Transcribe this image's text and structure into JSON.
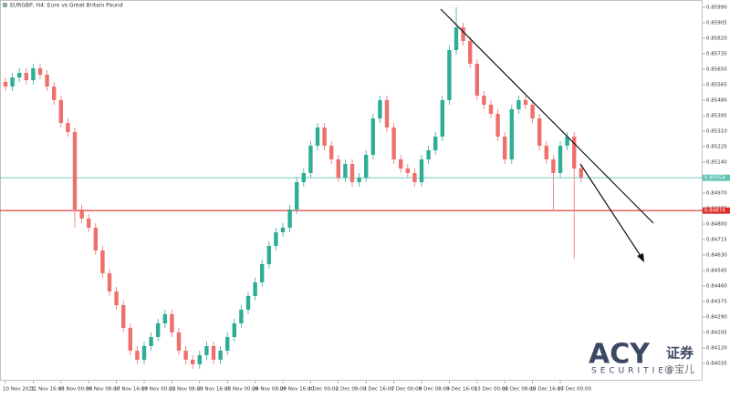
{
  "chart_data": {
    "type": "candlestick",
    "title": "EURGBP, H4:  Euro vs Great Britain Pound",
    "up_color": "#2fae96",
    "down_color": "#ef6f6c",
    "ylim": [
      0.8394,
      0.8603
    ],
    "yticks": [
      {
        "value": 0.8599,
        "label": "0.85990"
      },
      0.85905,
      {
        "value": 0.8582,
        "label": "0.85820"
      },
      0.85735,
      {
        "value": 0.8565,
        "label": "0.85650"
      },
      0.85565,
      {
        "value": 0.8548,
        "label": "0.85480"
      },
      0.85395,
      {
        "value": 0.8531,
        "label": "0.85310"
      },
      0.85225,
      {
        "value": 0.8514,
        "label": "0.85140"
      },
      0.85055,
      {
        "value": 0.8497,
        "label": "0.84970"
      },
      0.84885,
      {
        "value": 0.848,
        "label": "0.84800"
      },
      0.84715,
      {
        "value": 0.8463,
        "label": "0.84630"
      },
      0.84545,
      {
        "value": 0.8446,
        "label": "0.84460"
      },
      0.84375,
      {
        "value": 0.8429,
        "label": "0.84290"
      },
      0.84205,
      {
        "value": 0.8412,
        "label": "0.84120"
      },
      0.84035
    ],
    "hlines": [
      {
        "value": 0.85054,
        "color": "#5fc4b4"
      },
      {
        "value": 0.84874,
        "color": "#d9302c"
      }
    ],
    "categories": [
      "10 Nov 2021",
      null,
      null,
      null,
      "11 Nov 16:00",
      null,
      null,
      null,
      "15 Nov 00:00",
      null,
      null,
      null,
      "16 Nov 08:00",
      null,
      null,
      null,
      "17 Nov 16:00",
      null,
      null,
      null,
      "19 Nov 00:00",
      null,
      null,
      null,
      "22 Nov 08:00",
      null,
      null,
      null,
      "23 Nov 16:00",
      null,
      null,
      null,
      "25 Nov 00:00",
      null,
      null,
      null,
      "26 Nov 08:00",
      null,
      null,
      null,
      "29 Nov 16:00",
      null,
      null,
      null,
      "1 Dec 00:00",
      null,
      null,
      null,
      "2 Dec 08:00",
      null,
      null,
      null,
      "3 Dec 16:00",
      null,
      null,
      null,
      "7 Dec 00:00",
      null,
      null,
      null,
      "8 Dec 08:00",
      null,
      null,
      null,
      "9 Dec 16:00",
      null,
      null,
      null,
      "13 Dec 00:00",
      null,
      null,
      null,
      "14 Dec 08:00",
      null,
      null,
      null,
      "15 Dec 16:00",
      null,
      null,
      null,
      "17 Dec 00:00",
      null,
      null,
      null
    ],
    "open": [
      0.8558,
      0.85555,
      0.85605,
      0.8563,
      0.8559,
      0.85655,
      0.8562,
      0.85555,
      0.8548,
      0.85355,
      0.85305,
      0.8488,
      0.8483,
      0.8478,
      0.84655,
      0.8453,
      0.8443,
      0.84355,
      0.8423,
      0.84105,
      0.84055,
      0.8413,
      0.8418,
      0.84255,
      0.84305,
      0.84205,
      0.84105,
      0.84055,
      0.8403,
      0.8408,
      0.8413,
      0.84055,
      0.84105,
      0.8418,
      0.84255,
      0.8433,
      0.84405,
      0.8448,
      0.8458,
      0.8468,
      0.84755,
      0.8478,
      0.8488,
      0.8503,
      0.8508,
      0.8523,
      0.8533,
      0.8523,
      0.85155,
      0.85055,
      0.8513,
      0.8503,
      0.85055,
      0.8518,
      0.8538,
      0.8548,
      0.8533,
      0.85155,
      0.85105,
      0.8508,
      0.8503,
      0.85155,
      0.85205,
      0.8528,
      0.8548,
      0.85755,
      0.8588,
      0.85805,
      0.8568,
      0.85505,
      0.85455,
      0.85405,
      0.8528,
      0.85155,
      0.8543,
      0.8548,
      0.85455,
      0.8538,
      0.8523,
      0.85155,
      0.8508,
      0.8523,
      0.8528,
      0.85105
    ],
    "high": [
      0.85605,
      0.8563,
      0.85655,
      0.85655,
      0.8568,
      0.8568,
      0.85645,
      0.8558,
      0.85505,
      0.8538,
      0.8533,
      0.84905,
      0.84855,
      0.84805,
      0.8468,
      0.84555,
      0.84455,
      0.8438,
      0.84255,
      0.8413,
      0.84155,
      0.84205,
      0.8428,
      0.8433,
      0.8433,
      0.8423,
      0.8413,
      0.8408,
      0.84105,
      0.84155,
      0.84155,
      0.8413,
      0.84205,
      0.8428,
      0.84355,
      0.8443,
      0.84505,
      0.84605,
      0.84705,
      0.8478,
      0.84805,
      0.84905,
      0.85055,
      0.85105,
      0.85255,
      0.85355,
      0.85355,
      0.85255,
      0.8518,
      0.85155,
      0.85155,
      0.8508,
      0.85205,
      0.85405,
      0.85505,
      0.85505,
      0.85355,
      0.8518,
      0.8513,
      0.85105,
      0.8518,
      0.8523,
      0.85305,
      0.85505,
      0.8578,
      0.8599,
      0.85905,
      0.8583,
      0.85705,
      0.8553,
      0.8548,
      0.8543,
      0.85305,
      0.85455,
      0.85505,
      0.85505,
      0.8548,
      0.85405,
      0.85255,
      0.8518,
      0.85255,
      0.85305,
      0.85305,
      0.8513
    ],
    "low": [
      0.8553,
      0.8553,
      0.8558,
      0.85565,
      0.85565,
      0.85595,
      0.8553,
      0.85455,
      0.8533,
      0.8528,
      0.8478,
      0.84805,
      0.84755,
      0.8463,
      0.84505,
      0.84405,
      0.8433,
      0.84205,
      0.8408,
      0.8403,
      0.8403,
      0.84105,
      0.84155,
      0.8423,
      0.8418,
      0.8408,
      0.8403,
      0.84005,
      0.84005,
      0.84055,
      0.8403,
      0.8403,
      0.8408,
      0.84155,
      0.8423,
      0.84305,
      0.8438,
      0.84455,
      0.84555,
      0.84655,
      0.8473,
      0.84755,
      0.84855,
      0.85005,
      0.85055,
      0.85205,
      0.85205,
      0.8513,
      0.8503,
      0.8503,
      0.85005,
      0.85005,
      0.8503,
      0.85155,
      0.85355,
      0.85305,
      0.8513,
      0.8508,
      0.85055,
      0.85005,
      0.85005,
      0.8513,
      0.8518,
      0.85255,
      0.85455,
      0.8573,
      0.8578,
      0.85655,
      0.8548,
      0.8543,
      0.8538,
      0.85255,
      0.8513,
      0.8513,
      0.85405,
      0.8543,
      0.85355,
      0.85205,
      0.8513,
      0.8488,
      0.85055,
      0.85205,
      0.8461,
      0.8503
    ],
    "close": [
      0.85555,
      0.85605,
      0.8563,
      0.8559,
      0.85655,
      0.8562,
      0.85555,
      0.8548,
      0.85355,
      0.85305,
      0.8488,
      0.8483,
      0.8478,
      0.84655,
      0.8453,
      0.8443,
      0.84355,
      0.8423,
      0.84105,
      0.84055,
      0.8413,
      0.8418,
      0.84255,
      0.84305,
      0.84205,
      0.84105,
      0.84055,
      0.8403,
      0.8408,
      0.8413,
      0.84055,
      0.84105,
      0.8418,
      0.84255,
      0.8433,
      0.84405,
      0.8448,
      0.8458,
      0.8468,
      0.84755,
      0.8478,
      0.8488,
      0.8503,
      0.8508,
      0.8523,
      0.8533,
      0.8523,
      0.85155,
      0.85055,
      0.8513,
      0.8503,
      0.85055,
      0.8518,
      0.8538,
      0.8548,
      0.8533,
      0.85155,
      0.85105,
      0.8508,
      0.8503,
      0.85155,
      0.85205,
      0.8528,
      0.8548,
      0.85755,
      0.8588,
      0.85805,
      0.8568,
      0.85505,
      0.85455,
      0.85405,
      0.8528,
      0.85155,
      0.8543,
      0.8548,
      0.85455,
      0.8538,
      0.8523,
      0.85155,
      0.8508,
      0.8523,
      0.8528,
      0.85105,
      0.85055
    ],
    "watermark": {
      "brand": "ACY",
      "cn": "证券",
      "sub": "SECURITIES",
      "handle": "@宝儿"
    }
  }
}
